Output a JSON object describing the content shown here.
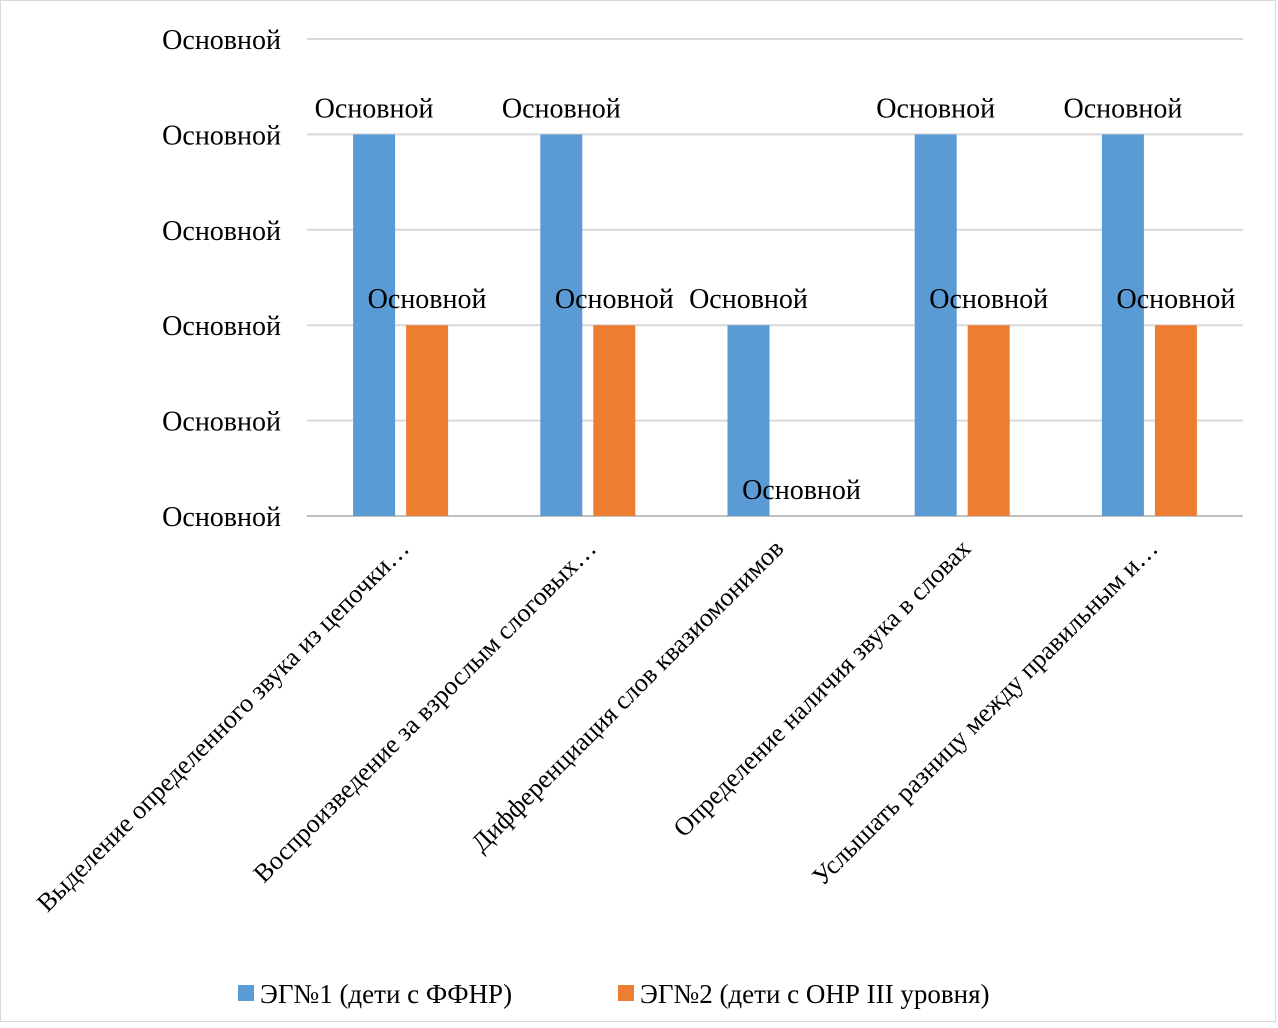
{
  "chart_data": {
    "type": "bar",
    "title": "",
    "xlabel": "",
    "ylabel": "",
    "ylim": [
      0,
      5
    ],
    "grid": true,
    "legend_position": "bottom",
    "y_tick_labels": [
      "Основной",
      "Основной",
      "Основной",
      "Основной",
      "Основной",
      "Основной"
    ],
    "categories": [
      "Выделение определенного звука из цепочки…",
      "Воспроизведение за взрослым слоговых…",
      "Дифференциация слов квазиомонимов",
      "Определение наличия звука в словах",
      "Услышать разницу между правильным и…"
    ],
    "series": [
      {
        "name": "ЭГ№1 (дети с ФФНР)",
        "color": "#5b9bd5",
        "values": [
          4,
          4,
          2,
          4,
          4
        ],
        "data_labels": [
          "Основной",
          "Основной",
          "Основной",
          "Основной",
          "Основной"
        ]
      },
      {
        "name": "ЭГ№2 (дети с ОНР III уровня)",
        "color": "#ed7d31",
        "values": [
          2,
          2,
          0,
          2,
          2
        ],
        "data_labels": [
          "Основной",
          "Основной",
          "Основной",
          "Основной",
          "Основной"
        ]
      }
    ]
  }
}
